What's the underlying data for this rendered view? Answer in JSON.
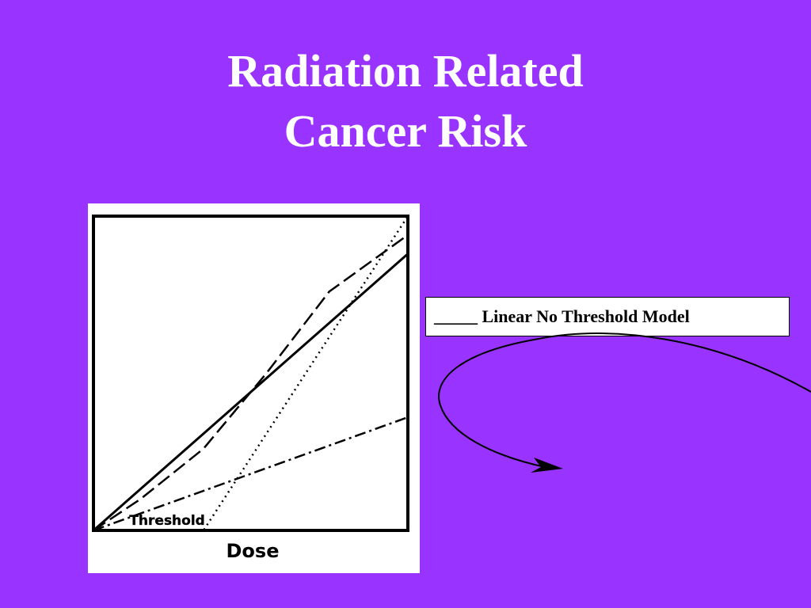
{
  "slide": {
    "title_line1": "Radiation Related",
    "title_line2": "Cancer Risk",
    "background_color": "#9933FF"
  },
  "legend": {
    "marker": "_____",
    "label": "Linear No Threshold Model"
  },
  "callout": {
    "arrow_icon": "curved-arrow-icon"
  },
  "chart_data": {
    "type": "line",
    "xlabel": "Dose",
    "ylabel": "",
    "title": "",
    "xlim": [
      0,
      100
    ],
    "ylim": [
      0,
      100
    ],
    "annotations": [
      {
        "text": "Threshold",
        "x": 22,
        "y": 2
      }
    ],
    "series": [
      {
        "style": "solid",
        "x": [
          0,
          100
        ],
        "y": [
          0,
          88
        ]
      },
      {
        "style": "dashed",
        "x": [
          0,
          15,
          35,
          55,
          75,
          100
        ],
        "y": [
          0,
          10,
          26,
          50,
          76,
          94
        ]
      },
      {
        "style": "dotted",
        "x": [
          0,
          35,
          100
        ],
        "y": [
          0,
          0,
          100
        ]
      },
      {
        "style": "dash-dot",
        "x": [
          0,
          100
        ],
        "y": [
          0,
          36
        ]
      }
    ]
  }
}
